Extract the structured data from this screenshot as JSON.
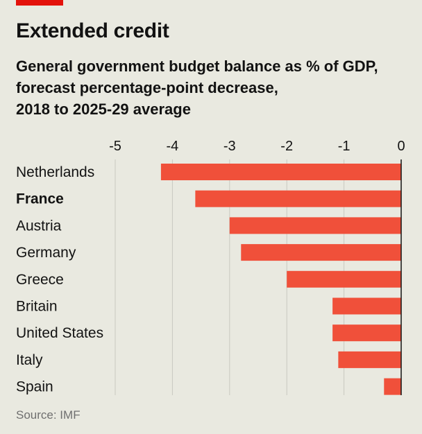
{
  "header": {
    "title": "Extended credit",
    "subtitle_lines": [
      "General government budget balance as % of GDP,",
      "forecast percentage-point decrease,",
      "2018 to 2025-29 average"
    ]
  },
  "footer": {
    "source": "Source: IMF"
  },
  "colors": {
    "bar": "#f0503a",
    "accent": "#e3120b",
    "grid": "#c9c9c0",
    "axis": "#121212",
    "background": "#e9e9e0"
  },
  "chart_data": {
    "type": "bar",
    "orientation": "horizontal",
    "categories": [
      "Netherlands",
      "France",
      "Austria",
      "Germany",
      "Greece",
      "Britain",
      "United States",
      "Italy",
      "Spain"
    ],
    "highlighted_category": "France",
    "values": [
      -4.2,
      -3.6,
      -3.0,
      -2.8,
      -2.0,
      -1.2,
      -1.2,
      -1.1,
      -0.3
    ],
    "x_ticks": [
      -5,
      -4,
      -3,
      -2,
      -1,
      0
    ],
    "x_tick_labels": [
      "-5",
      "-4",
      "-3",
      "-2",
      "-1",
      "0"
    ],
    "xlim": [
      -5,
      0
    ],
    "grid": true,
    "title": "Extended credit",
    "xlabel": "",
    "ylabel": ""
  }
}
